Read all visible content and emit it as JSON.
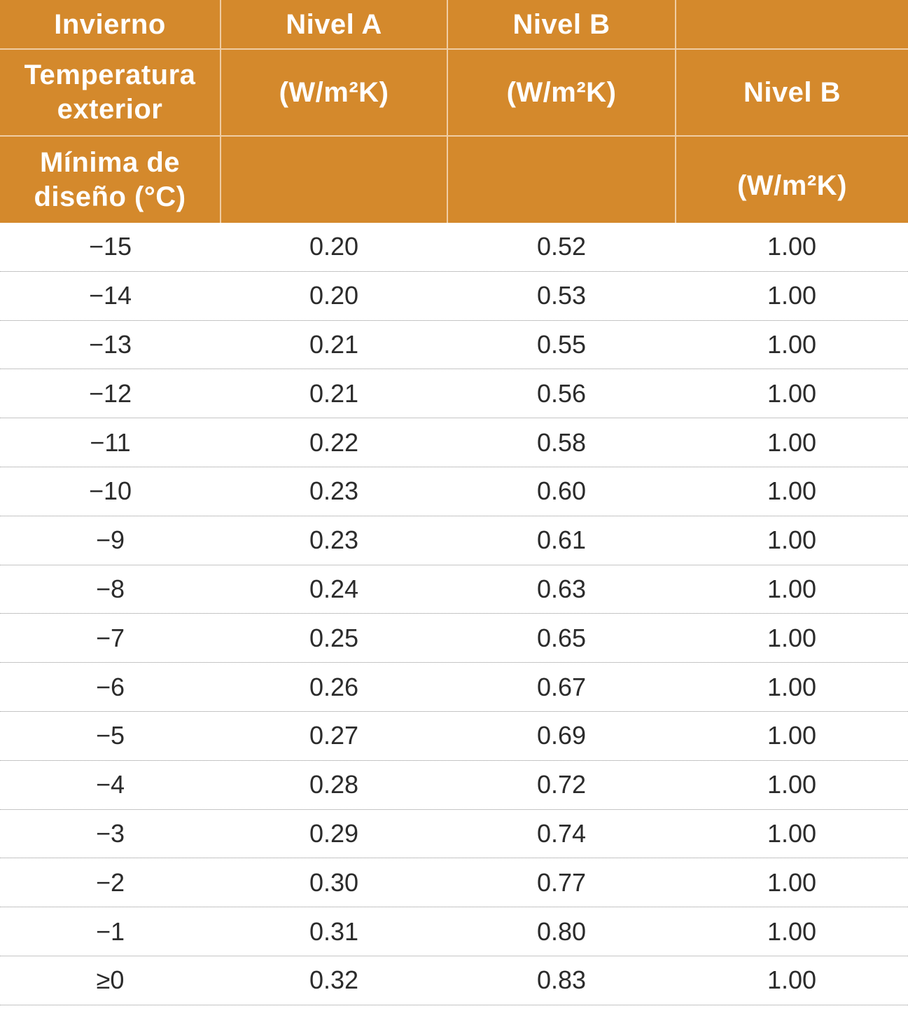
{
  "header": {
    "row1": {
      "col1": "Invierno",
      "col2": "Nivel A",
      "col3": "Nivel B",
      "col4": ""
    },
    "row2": {
      "col1_line1": "Temperatura",
      "col1_line2": "exterior",
      "col2": "(W/m²K)",
      "col3": "(W/m²K)",
      "col4": "Nivel B"
    },
    "row3": {
      "col1_line1": "Mínima de",
      "col1_line2": "diseño (°C)",
      "col2": "",
      "col3": "",
      "col4": "(W/m²K)"
    }
  },
  "rows": [
    {
      "temp": "−15",
      "a": "0.20",
      "b": "0.52",
      "b2": "1.00"
    },
    {
      "temp": "−14",
      "a": "0.20",
      "b": "0.53",
      "b2": "1.00"
    },
    {
      "temp": "−13",
      "a": "0.21",
      "b": "0.55",
      "b2": "1.00"
    },
    {
      "temp": "−12",
      "a": "0.21",
      "b": "0.56",
      "b2": "1.00"
    },
    {
      "temp": "−11",
      "a": "0.22",
      "b": "0.58",
      "b2": "1.00"
    },
    {
      "temp": "−10",
      "a": "0.23",
      "b": "0.60",
      "b2": "1.00"
    },
    {
      "temp": "−9",
      "a": "0.23",
      "b": "0.61",
      "b2": "1.00"
    },
    {
      "temp": "−8",
      "a": "0.24",
      "b": "0.63",
      "b2": "1.00"
    },
    {
      "temp": "−7",
      "a": "0.25",
      "b": "0.65",
      "b2": "1.00"
    },
    {
      "temp": "−6",
      "a": "0.26",
      "b": "0.67",
      "b2": "1.00"
    },
    {
      "temp": "−5",
      "a": "0.27",
      "b": "0.69",
      "b2": "1.00"
    },
    {
      "temp": "−4",
      "a": "0.28",
      "b": "0.72",
      "b2": "1.00"
    },
    {
      "temp": "−3",
      "a": "0.29",
      "b": "0.74",
      "b2": "1.00"
    },
    {
      "temp": "−2",
      "a": "0.30",
      "b": "0.77",
      "b2": "1.00"
    },
    {
      "temp": "−1",
      "a": "0.31",
      "b": "0.80",
      "b2": "1.00"
    },
    {
      "temp": "≥0",
      "a": "0.32",
      "b": "0.83",
      "b2": "1.00"
    }
  ],
  "colors": {
    "header_bg": "#d4892c",
    "header_text": "#ffffff",
    "body_text": "#2b2b2b"
  }
}
